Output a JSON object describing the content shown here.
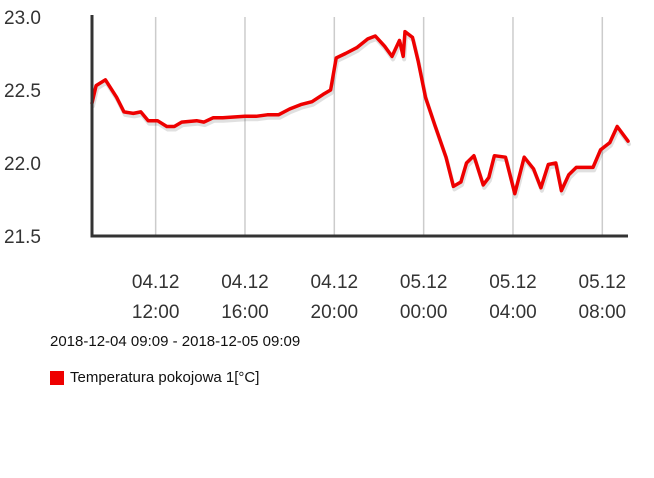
{
  "chart_data": {
    "type": "line",
    "title": "",
    "xlabel": "",
    "ylabel": "",
    "ylim": [
      21.5,
      23.0
    ],
    "yticks": [
      {
        "value": 21.5,
        "label": "21.5"
      },
      {
        "value": 22.0,
        "label": "22.0"
      },
      {
        "value": 22.5,
        "label": "22.5"
      },
      {
        "value": 23.0,
        "label": "23.0"
      }
    ],
    "xlim": [
      "2018-12-04 09:09",
      "2018-12-05 09:09"
    ],
    "xticks": [
      {
        "value": "2018-12-04 12:00",
        "line1": "04.12",
        "line2": "12:00"
      },
      {
        "value": "2018-12-04 16:00",
        "line1": "04.12",
        "line2": "16:00"
      },
      {
        "value": "2018-12-04 20:00",
        "line1": "04.12",
        "line2": "20:00"
      },
      {
        "value": "2018-12-05 00:00",
        "line1": "05.12",
        "line2": "00:00"
      },
      {
        "value": "2018-12-05 04:00",
        "line1": "05.12",
        "line2": "04:00"
      },
      {
        "value": "2018-12-05 08:00",
        "line1": "05.12",
        "line2": "08:00"
      }
    ],
    "grid": {
      "vertical": true,
      "horizontal": false
    },
    "legend_position": "bottom-left",
    "series": [
      {
        "name": "Temperatura pokojowa 1[°C]",
        "color": "#ee0000",
        "points": [
          [
            "2018-12-04 09:09",
            22.41
          ],
          [
            "2018-12-04 09:20",
            22.53
          ],
          [
            "2018-12-04 09:45",
            22.57
          ],
          [
            "2018-12-04 10:15",
            22.45
          ],
          [
            "2018-12-04 10:35",
            22.35
          ],
          [
            "2018-12-04 11:00",
            22.34
          ],
          [
            "2018-12-04 11:20",
            22.35
          ],
          [
            "2018-12-04 11:40",
            22.29
          ],
          [
            "2018-12-04 12:05",
            22.29
          ],
          [
            "2018-12-04 12:30",
            22.25
          ],
          [
            "2018-12-04 12:50",
            22.25
          ],
          [
            "2018-12-04 13:10",
            22.28
          ],
          [
            "2018-12-04 13:50",
            22.29
          ],
          [
            "2018-12-04 14:10",
            22.28
          ],
          [
            "2018-12-04 14:35",
            22.31
          ],
          [
            "2018-12-04 15:00",
            22.31
          ],
          [
            "2018-12-04 16:00",
            22.32
          ],
          [
            "2018-12-04 16:30",
            22.32
          ],
          [
            "2018-12-04 17:00",
            22.33
          ],
          [
            "2018-12-04 17:30",
            22.33
          ],
          [
            "2018-12-04 18:00",
            22.37
          ],
          [
            "2018-12-04 18:30",
            22.4
          ],
          [
            "2018-12-04 19:00",
            22.42
          ],
          [
            "2018-12-04 19:30",
            22.47
          ],
          [
            "2018-12-04 19:50",
            22.5
          ],
          [
            "2018-12-04 20:05",
            22.72
          ],
          [
            "2018-12-04 20:30",
            22.75
          ],
          [
            "2018-12-04 21:00",
            22.79
          ],
          [
            "2018-12-04 21:30",
            22.85
          ],
          [
            "2018-12-04 21:50",
            22.87
          ],
          [
            "2018-12-04 22:15",
            22.8
          ],
          [
            "2018-12-04 22:35",
            22.73
          ],
          [
            "2018-12-04 22:55",
            22.84
          ],
          [
            "2018-12-04 23:05",
            22.73
          ],
          [
            "2018-12-04 23:10",
            22.9
          ],
          [
            "2018-12-04 23:30",
            22.86
          ],
          [
            "2018-12-04 23:45",
            22.7
          ],
          [
            "2018-12-05 00:05",
            22.45
          ],
          [
            "2018-12-05 00:30",
            22.26
          ],
          [
            "2018-12-05 01:00",
            22.04
          ],
          [
            "2018-12-05 01:20",
            21.84
          ],
          [
            "2018-12-05 01:40",
            21.87
          ],
          [
            "2018-12-05 01:55",
            22.0
          ],
          [
            "2018-12-05 02:15",
            22.05
          ],
          [
            "2018-12-05 02:40",
            21.85
          ],
          [
            "2018-12-05 02:55",
            21.9
          ],
          [
            "2018-12-05 03:10",
            22.05
          ],
          [
            "2018-12-05 03:40",
            22.04
          ],
          [
            "2018-12-05 04:05",
            21.79
          ],
          [
            "2018-12-05 04:30",
            22.04
          ],
          [
            "2018-12-05 04:55",
            21.96
          ],
          [
            "2018-12-05 05:15",
            21.83
          ],
          [
            "2018-12-05 05:35",
            21.99
          ],
          [
            "2018-12-05 05:55",
            22.0
          ],
          [
            "2018-12-05 06:10",
            21.81
          ],
          [
            "2018-12-05 06:30",
            21.92
          ],
          [
            "2018-12-05 06:50",
            21.97
          ],
          [
            "2018-12-05 07:10",
            21.97
          ],
          [
            "2018-12-05 07:35",
            21.97
          ],
          [
            "2018-12-05 07:55",
            22.09
          ],
          [
            "2018-12-05 08:20",
            22.14
          ],
          [
            "2018-12-05 08:40",
            22.25
          ],
          [
            "2018-12-05 09:09",
            22.15
          ]
        ]
      }
    ]
  },
  "range_text": "2018-12-04 09:09 - 2018-12-05 09:09",
  "legend": {
    "label": "Temperatura pokojowa 1[°C]",
    "color": "#ee0000"
  }
}
